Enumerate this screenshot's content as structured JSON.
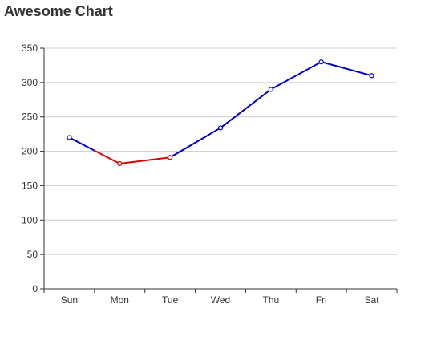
{
  "chart_data": {
    "type": "line",
    "title": "Awesome Chart",
    "categories": [
      "Sun",
      "Mon",
      "Tue",
      "Wed",
      "Thu",
      "Fri",
      "Sat"
    ],
    "values": [
      220,
      182,
      191,
      234,
      290,
      330,
      310
    ],
    "ylim": [
      0,
      350
    ],
    "yticks": [
      0,
      50,
      100,
      150,
      200,
      250,
      300,
      350
    ],
    "grid": true,
    "colors": {
      "default_line": "#0000cc",
      "highlight_line": "#e00000",
      "grid": "#cccccc",
      "axis": "#333333",
      "point_fill": "#ffffff"
    },
    "highlight_range": [
      "Sun",
      "Tue"
    ]
  }
}
